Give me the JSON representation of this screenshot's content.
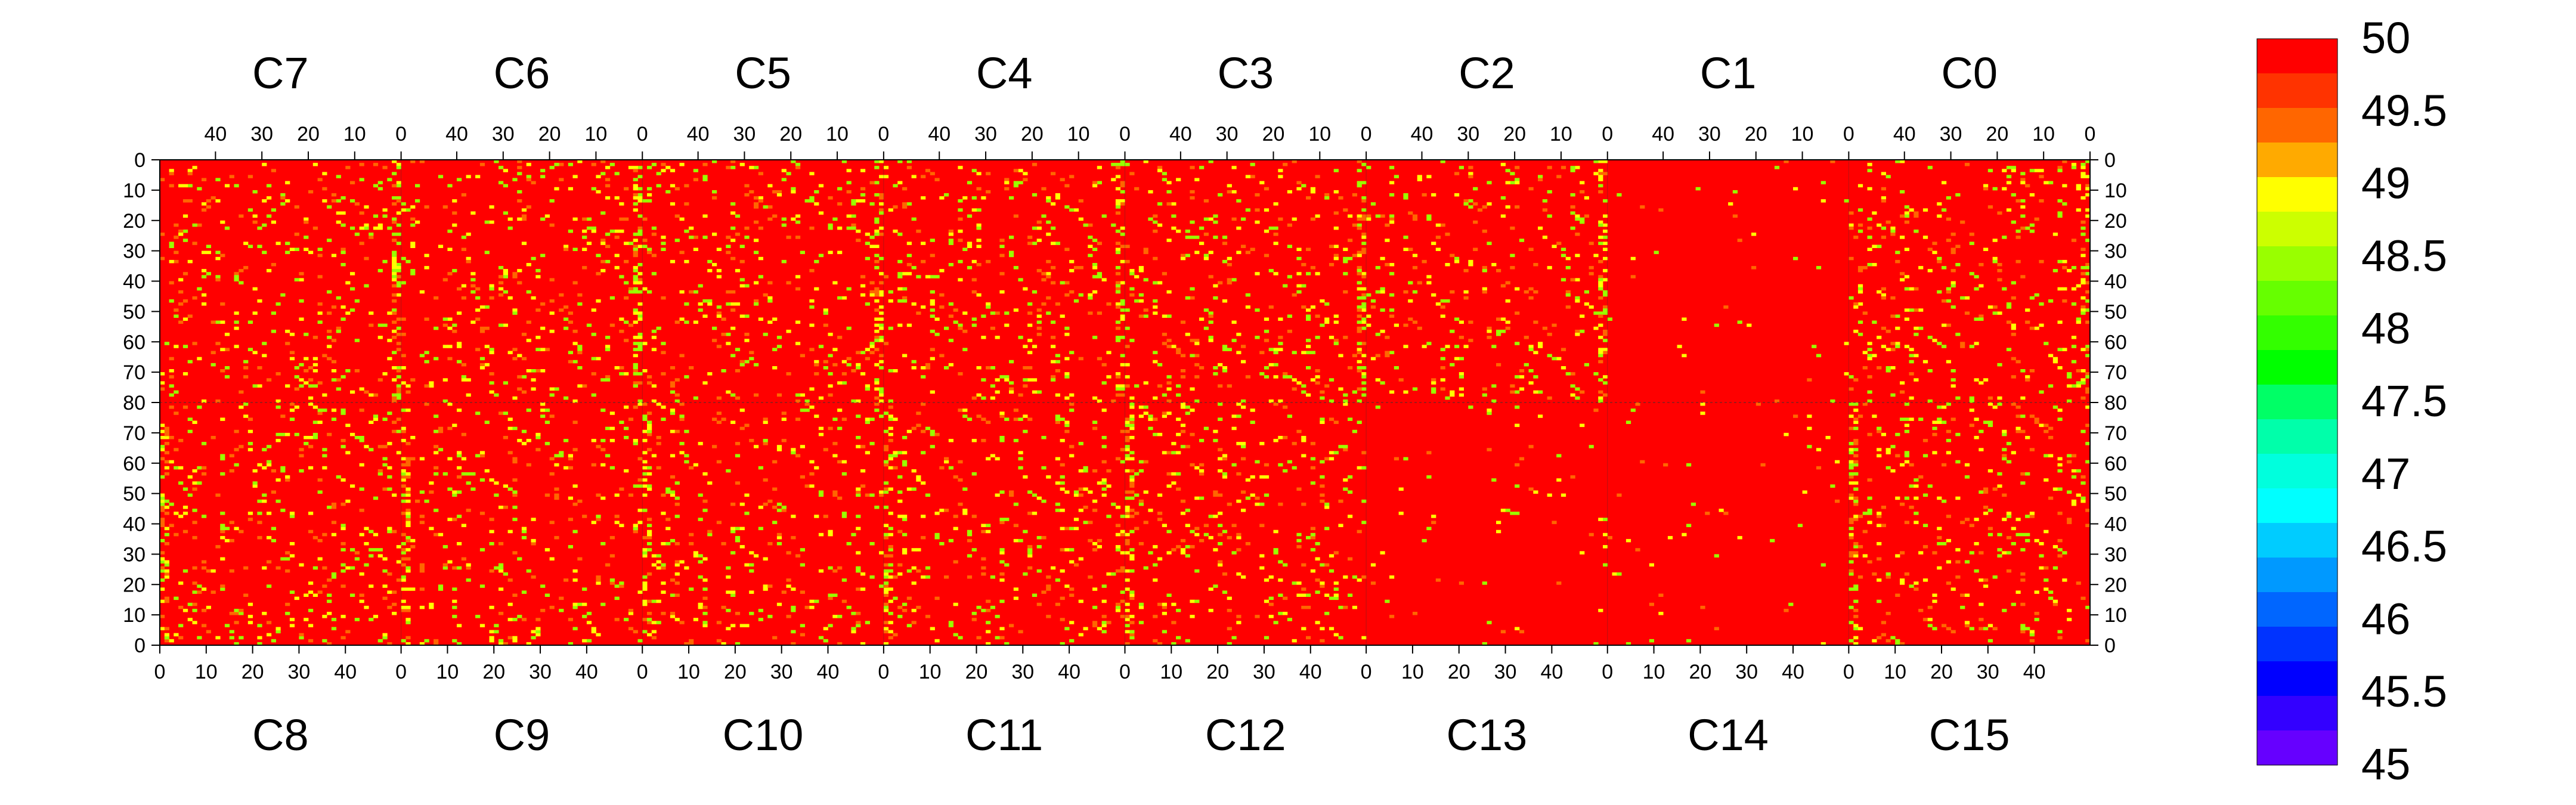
{
  "chart_data": {
    "type": "heatmap",
    "chips_top": [
      "C7",
      "C6",
      "C5",
      "C4",
      "C3",
      "C2",
      "C1",
      "C0"
    ],
    "chips_bottom": [
      "C8",
      "C9",
      "C10",
      "C11",
      "C12",
      "C13",
      "C14",
      "C15"
    ],
    "x_range_per_chip": [
      0,
      52
    ],
    "top_x_ticks": [
      "40",
      "30",
      "20",
      "10",
      "0"
    ],
    "top_x_tick_values": [
      40,
      30,
      20,
      10,
      0
    ],
    "bottom_x_ticks": [
      "0",
      "10",
      "20",
      "30",
      "40"
    ],
    "bottom_x_tick_values": [
      0,
      10,
      20,
      30,
      40
    ],
    "top_rows_range": [
      0,
      80
    ],
    "bottom_rows_range": [
      0,
      80
    ],
    "y_ticks_top": [
      "0",
      "10",
      "20",
      "30",
      "40",
      "50",
      "60",
      "70",
      "80"
    ],
    "y_ticks_bottom": [
      "70",
      "60",
      "50",
      "40",
      "30",
      "20",
      "10",
      "0"
    ],
    "y_tick_values_top": [
      0,
      10,
      20,
      30,
      40,
      50,
      60,
      70,
      80
    ],
    "y_tick_values_bottom": [
      70,
      60,
      50,
      40,
      30,
      20,
      10,
      0
    ],
    "colorbar": {
      "min": 45,
      "max": 50,
      "labels": [
        "50",
        "49.5",
        "49",
        "48.5",
        "48",
        "47.5",
        "47",
        "46.5",
        "46",
        "45.5",
        "45"
      ],
      "label_values": [
        50,
        49.5,
        49,
        48.5,
        48,
        47.5,
        47,
        46.5,
        46,
        45.5,
        45
      ],
      "colors": [
        "#ff0000",
        "#ff3300",
        "#ff6600",
        "#ffaa00",
        "#ffff00",
        "#ccff00",
        "#99ff00",
        "#66ff00",
        "#33ff00",
        "#00ff00",
        "#00ff66",
        "#00ffaa",
        "#00ffdd",
        "#00ffff",
        "#00ccff",
        "#0099ff",
        "#0066ff",
        "#0033ff",
        "#0000ff",
        "#3300ff",
        "#6600ff"
      ]
    },
    "background_value": 50,
    "noisy_value_examples": [
      49.5,
      49,
      48.5
    ],
    "grid": false
  }
}
